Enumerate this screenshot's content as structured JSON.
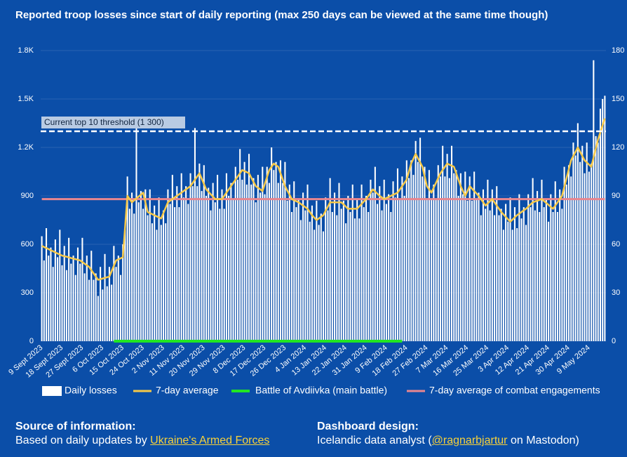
{
  "chart_data": {
    "type": "bar",
    "title": "Reported troop losses since start of daily reporting (max 250 days can be viewed at the same time though)",
    "categories": [
      "9 Sept 2023",
      null,
      null,
      null,
      null,
      null,
      null,
      null,
      null,
      "18 Sept 2023",
      null,
      null,
      null,
      null,
      null,
      null,
      null,
      null,
      "27 Sept 2023",
      null,
      null,
      null,
      null,
      null,
      null,
      null,
      null,
      "6 Oct 2023",
      null,
      null,
      null,
      null,
      null,
      null,
      null,
      null,
      "15 Oct 2023",
      null,
      null,
      null,
      null,
      null,
      null,
      null,
      null,
      "24 Oct 2023",
      null,
      null,
      null,
      null,
      null,
      null,
      null,
      null,
      "2 Nov 2023",
      null,
      null,
      null,
      null,
      null,
      null,
      null,
      null,
      "11 Nov 2023",
      null,
      null,
      null,
      null,
      null,
      null,
      null,
      null,
      "20 Nov 2023",
      null,
      null,
      null,
      null,
      null,
      null,
      null,
      null,
      "29 Nov 2023",
      null,
      null,
      null,
      null,
      null,
      null,
      null,
      null,
      "8 Dec 2023",
      null,
      null,
      null,
      null,
      null,
      null,
      null,
      null,
      "17 Dec 2023",
      null,
      null,
      null,
      null,
      null,
      null,
      null,
      null,
      "26 Dec 2023",
      null,
      null,
      null,
      null,
      null,
      null,
      null,
      null,
      "4 Jan 2024",
      null,
      null,
      null,
      null,
      null,
      null,
      null,
      null,
      "13 Jan 2024",
      null,
      null,
      null,
      null,
      null,
      null,
      null,
      null,
      "22 Jan 2024",
      null,
      null,
      null,
      null,
      null,
      null,
      null,
      null,
      "31 Jan 2024",
      null,
      null,
      null,
      null,
      null,
      null,
      null,
      null,
      "9 Feb 2024",
      null,
      null,
      null,
      null,
      null,
      null,
      null,
      null,
      "18 Feb 2024",
      null,
      null,
      null,
      null,
      null,
      null,
      null,
      null,
      "27 Feb 2024",
      null,
      null,
      null,
      null,
      null,
      null,
      null,
      null,
      "7 Mar 2024",
      null,
      null,
      null,
      null,
      null,
      null,
      null,
      null,
      "16 Mar 2024",
      null,
      null,
      null,
      null,
      null,
      null,
      null,
      null,
      "25 Mar 2024",
      null,
      null,
      null,
      null,
      null,
      null,
      null,
      null,
      "3 Apr 2024",
      null,
      null,
      null,
      null,
      null,
      null,
      null,
      null,
      "12 Apr 2024",
      null,
      null,
      null,
      null,
      null,
      null,
      null,
      null,
      "21 Apr 2024",
      null,
      null,
      null,
      null,
      null,
      null,
      null,
      null,
      "30 Apr 2024",
      null,
      null,
      null,
      null,
      null,
      null,
      null,
      null,
      "9 May 2024",
      null,
      null,
      null,
      null,
      null,
      null,
      null
    ],
    "series": [
      {
        "name": "Daily losses",
        "kind": "bar",
        "color": "#ffffff",
        "values": [
          650,
          500,
          700,
          530,
          580,
          460,
          630,
          520,
          690,
          470,
          590,
          440,
          640,
          480,
          530,
          410,
          580,
          480,
          640,
          420,
          530,
          380,
          560,
          380,
          420,
          280,
          460,
          320,
          540,
          340,
          460,
          350,
          590,
          460,
          530,
          410,
          600,
          690,
          1020,
          820,
          920,
          790,
          1380,
          860,
          930,
          820,
          940,
          780,
          940,
          730,
          840,
          690,
          890,
          720,
          810,
          730,
          940,
          850,
          1030,
          830,
          960,
          830,
          1040,
          890,
          960,
          850,
          1040,
          960,
          1320,
          960,
          1100,
          930,
          1090,
          900,
          950,
          810,
          980,
          860,
          1030,
          820,
          940,
          820,
          1040,
          900,
          980,
          880,
          1080,
          1000,
          1190,
          1000,
          1110,
          970,
          1160,
          970,
          1010,
          860,
          1030,
          920,
          1080,
          910,
          1080,
          980,
          1200,
          1060,
          1110,
          980,
          1120,
          980,
          1110,
          870,
          970,
          800,
          990,
          830,
          880,
          750,
          920,
          810,
          970,
          740,
          840,
          690,
          870,
          720,
          790,
          680,
          890,
          810,
          1010,
          800,
          920,
          780,
          980,
          820,
          870,
          730,
          900,
          800,
          970,
          760,
          880,
          760,
          970,
          830,
          900,
          800,
          1000,
          920,
          1080,
          850,
          960,
          810,
          1000,
          850,
          910,
          800,
          990,
          890,
          1070,
          880,
          1020,
          900,
          1120,
          1010,
          1120,
          1030,
          1240,
          1110,
          1260,
          1020,
          1080,
          880,
          1060,
          880,
          970,
          880,
          1090,
          1020,
          1210,
          1020,
          1160,
          1010,
          1210,
          1040,
          1060,
          900,
          1040,
          910,
          1050,
          870,
          1020,
          870,
          1050,
          880,
          920,
          780,
          940,
          820,
          1000,
          810,
          940,
          780,
          960,
          780,
          820,
          690,
          850,
          740,
          890,
          690,
          830,
          700,
          910,
          760,
          830,
          720,
          910,
          830,
          1010,
          810,
          930,
          800,
          1000,
          830,
          880,
          740,
          910,
          800,
          990,
          800,
          940,
          820,
          1080,
          970,
          1090,
          1020,
          1230,
          1150,
          1350,
          1110,
          1210,
          1040,
          1230,
          1050,
          1100,
          1740,
          1270,
          1230,
          1440,
          1500,
          1520
        ]
      },
      {
        "name": "7-day average",
        "kind": "line",
        "color": "#f7c948",
        "values": [
          590,
          583,
          577,
          570,
          563,
          557,
          550,
          543,
          537,
          530,
          526,
          523,
          519,
          515,
          511,
          508,
          504,
          500,
          490,
          480,
          470,
          460,
          440,
          420,
          400,
          380,
          384,
          388,
          392,
          396,
          400,
          433,
          467,
          500,
          507,
          513,
          520,
          710,
          900,
          880,
          860,
          872,
          884,
          896,
          908,
          920,
          860,
          800,
          793,
          787,
          780,
          773,
          767,
          760,
          793,
          827,
          860,
          870,
          880,
          890,
          900,
          910,
          920,
          930,
          940,
          950,
          960,
          980,
          1000,
          1020,
          1040,
          1007,
          973,
          940,
          925,
          910,
          895,
          880,
          880,
          880,
          880,
          900,
          920,
          940,
          960,
          980,
          1000,
          1020,
          1040,
          1060,
          1053,
          1047,
          1040,
          1013,
          987,
          960,
          950,
          940,
          930,
          973,
          1017,
          1060,
          1080,
          1100,
          1090,
          1080,
          1040,
          1000,
          960,
          933,
          907,
          880,
          873,
          867,
          860,
          850,
          840,
          830,
          820,
          800,
          780,
          765,
          750,
          760,
          770,
          780,
          807,
          833,
          860,
          860,
          860,
          860,
          860,
          860,
          847,
          833,
          820,
          820,
          820,
          820,
          820,
          835,
          850,
          865,
          880,
          900,
          920,
          940,
          927,
          913,
          900,
          890,
          880,
          887,
          893,
          900,
          907,
          913,
          920,
          940,
          960,
          980,
          1000,
          1050,
          1100,
          1130,
          1160,
          1133,
          1107,
          1080,
          1020,
          960,
          940,
          920,
          950,
          980,
          1010,
          1040,
          1060,
          1080,
          1100,
          1093,
          1087,
          1080,
          1040,
          1000,
          960,
          930,
          900,
          930,
          960,
          945,
          930,
          915,
          900,
          880,
          860,
          840,
          853,
          867,
          880,
          860,
          840,
          820,
          800,
          785,
          770,
          755,
          740,
          753,
          767,
          780,
          790,
          800,
          810,
          820,
          833,
          847,
          860,
          865,
          870,
          875,
          880,
          868,
          856,
          844,
          832,
          820,
          840,
          860,
          880,
          900,
          955,
          1010,
          1065,
          1120,
          1147,
          1173,
          1200,
          1173,
          1147,
          1120,
          1107,
          1093,
          1080,
          1137,
          1193,
          1250,
          1293,
          1337,
          1380
        ]
      },
      {
        "name": "Battle of Avdiivka (main battle)",
        "kind": "line",
        "color": "#22e622",
        "values": [
          null,
          null,
          null,
          null,
          null,
          null,
          null,
          null,
          null,
          null,
          null,
          null,
          null,
          null,
          null,
          null,
          null,
          null,
          null,
          null,
          null,
          null,
          null,
          null,
          null,
          null,
          null,
          null,
          null,
          null,
          null,
          null,
          0,
          0,
          0,
          0,
          0,
          0,
          0,
          0,
          0,
          0,
          0,
          0,
          0,
          0,
          0,
          0,
          0,
          0,
          0,
          0,
          0,
          0,
          0,
          0,
          0,
          0,
          0,
          0,
          0,
          0,
          0,
          0,
          0,
          0,
          0,
          0,
          0,
          0,
          0,
          0,
          0,
          0,
          0,
          0,
          0,
          0,
          0,
          0,
          0,
          0,
          0,
          0,
          0,
          0,
          0,
          0,
          0,
          0,
          0,
          0,
          0,
          0,
          0,
          0,
          0,
          0,
          0,
          0,
          0,
          0,
          0,
          0,
          0,
          0,
          0,
          0,
          0,
          0,
          0,
          0,
          0,
          0,
          0,
          0,
          0,
          0,
          0,
          0,
          0,
          0,
          0,
          0,
          0,
          0,
          0,
          0,
          0,
          0,
          0,
          0,
          0,
          0,
          0,
          0,
          0,
          0,
          0,
          0,
          0,
          0,
          0,
          0,
          0,
          0,
          0,
          0,
          0,
          0,
          0,
          0,
          0,
          0,
          0,
          0,
          0,
          0,
          0,
          0,
          0,
          null,
          null,
          null,
          null,
          null,
          null,
          null,
          null,
          null,
          null,
          null,
          null,
          null,
          null,
          null,
          null,
          null,
          null,
          null,
          null,
          null,
          null,
          null,
          null,
          null,
          null,
          null,
          null,
          null,
          null,
          null,
          null,
          null,
          null,
          null,
          null,
          null,
          null,
          null,
          null,
          null,
          null,
          null,
          null,
          null,
          null,
          null,
          null,
          null,
          null,
          null,
          null,
          null,
          null,
          null,
          null,
          null,
          null,
          null,
          null,
          null,
          null,
          null,
          null,
          null,
          null,
          null,
          null,
          null,
          null,
          null,
          null,
          null,
          null,
          null,
          null,
          null,
          null,
          null,
          null,
          null,
          null,
          null,
          null,
          null,
          null,
          null,
          null,
          null,
          null
        ]
      },
      {
        "name": "7-day average of combat engagements",
        "kind": "line",
        "axis": "y2",
        "color": "#e8868f",
        "values": [
          88,
          88,
          88,
          88,
          88,
          88,
          88,
          88,
          88,
          88,
          88,
          88,
          88,
          88,
          88,
          88,
          88,
          88,
          88,
          88,
          88,
          88,
          88,
          88,
          88,
          88,
          88,
          88,
          88,
          88,
          88,
          88,
          88,
          88,
          88,
          88,
          88,
          88,
          88,
          88,
          88,
          88,
          88,
          88,
          88,
          88,
          88,
          88,
          88,
          88,
          88,
          88,
          88,
          88,
          88,
          88,
          88,
          88,
          88,
          88,
          88,
          88,
          88,
          88,
          88,
          88,
          88,
          88,
          88,
          88,
          88,
          88,
          88,
          88,
          88,
          88,
          88,
          88,
          88,
          88,
          88,
          88,
          88,
          88,
          88,
          88,
          88,
          88,
          88,
          88,
          88,
          88,
          88,
          88,
          88,
          88,
          88,
          88,
          88,
          88,
          88,
          88,
          88,
          88,
          88,
          88,
          88,
          88,
          88,
          88,
          88,
          88,
          88,
          88,
          88,
          88,
          88,
          88,
          88,
          88,
          88,
          88,
          88,
          88,
          88,
          88,
          88,
          88,
          88,
          88,
          88,
          88,
          88,
          88,
          88,
          88,
          88,
          88,
          88,
          88,
          88,
          88,
          88,
          88,
          88,
          88,
          88,
          88,
          88,
          88,
          88,
          88,
          88,
          88,
          88,
          88,
          88,
          88,
          88,
          88,
          88,
          88,
          88,
          88,
          88,
          88,
          88,
          88,
          88,
          88,
          88,
          88,
          88,
          88,
          88,
          88,
          88,
          88,
          88,
          88,
          88,
          88,
          88,
          88,
          88,
          88,
          88,
          88,
          88,
          88,
          88,
          88,
          88,
          88,
          88,
          88,
          88,
          88,
          88,
          88,
          88,
          88,
          88,
          88,
          88,
          88,
          88,
          88,
          88,
          88,
          88,
          88,
          88,
          88,
          88,
          88,
          88,
          88,
          88,
          88,
          88,
          88,
          88,
          88,
          88,
          88,
          88,
          88,
          88,
          88,
          88,
          88,
          88,
          88,
          88,
          88,
          88,
          88,
          88,
          88,
          88,
          88,
          88,
          88,
          88,
          88,
          88,
          88,
          88,
          88,
          88
        ]
      }
    ],
    "ylim": [
      0,
      1800
    ],
    "yticks": [
      0,
      300,
      600,
      900,
      {
        "value": 1200,
        "label": "1.2K"
      },
      {
        "value": 1500,
        "label": "1.5K"
      },
      {
        "value": 1800,
        "label": "1.8K"
      }
    ],
    "y2lim": [
      0,
      180
    ],
    "y2ticks": [
      0,
      30,
      60,
      90,
      120,
      150,
      180
    ],
    "grid": true,
    "threshold": {
      "value": 1300,
      "label": "Current top 10 threshold (1 300)"
    }
  },
  "footer": {
    "source": {
      "heading": "Source of information:",
      "text": "Based on daily updates by",
      "link": "Ukraine's Armed Forces"
    },
    "design": {
      "heading": "Dashboard design:",
      "text_before": "Icelandic data analyst (",
      "link": "@ragnarbjartur",
      "text_after": "on Mastodon)"
    }
  }
}
